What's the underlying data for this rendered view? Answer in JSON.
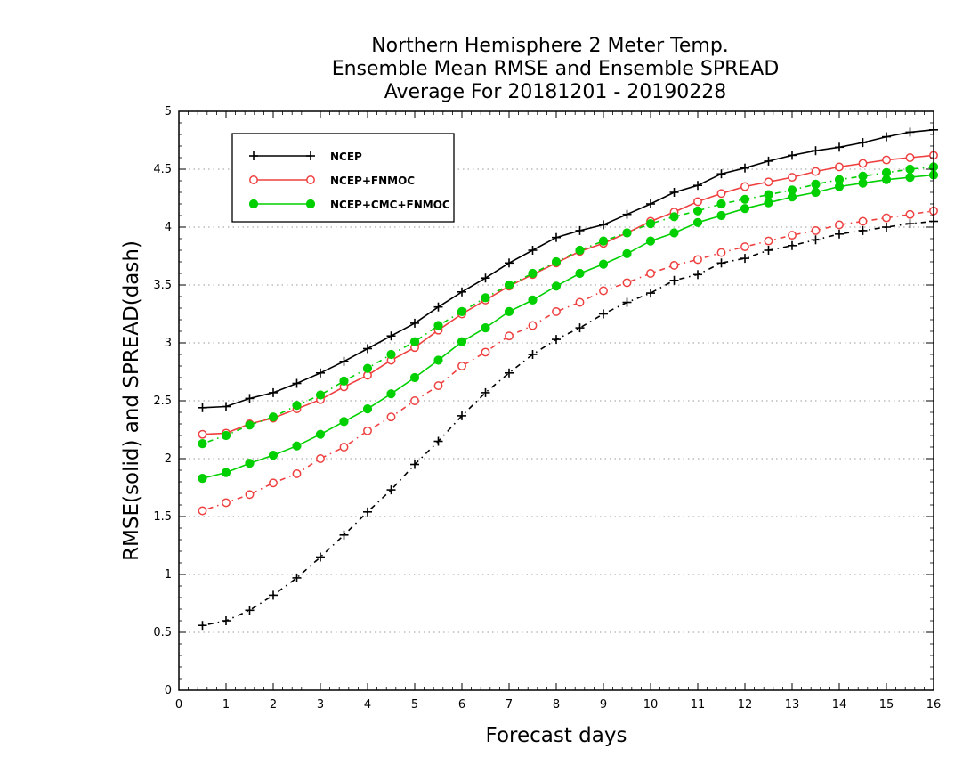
{
  "chart_data": {
    "type": "line",
    "title": [
      "Northern Hemisphere 2 Meter Temp.",
      "Ensemble Mean RMSE and Ensemble SPREAD",
      "Average For 20181201 - 20190228"
    ],
    "xlabel": "Forecast days",
    "ylabel": "RMSE(solid) and SPREAD(dash)",
    "xlim": [
      0,
      16
    ],
    "ylim": [
      0,
      5
    ],
    "x_ticks": [
      "0",
      "1",
      "2",
      "3",
      "4",
      "5",
      "6",
      "7",
      "8",
      "9",
      "10",
      "11",
      "12",
      "13",
      "14",
      "15",
      "16"
    ],
    "y_ticks": [
      "0",
      "0.5",
      "1",
      "1.5",
      "2",
      "2.5",
      "3",
      "3.5",
      "4",
      "4.5",
      "5"
    ],
    "grid": "horizontal dotted",
    "legend_position": "top-left",
    "x": [
      0.5,
      1,
      1.5,
      2,
      2.5,
      3,
      3.5,
      4,
      4.5,
      5,
      5.5,
      6,
      6.5,
      7,
      7.5,
      8,
      8.5,
      9,
      9.5,
      10,
      10.5,
      11,
      11.5,
      12,
      12.5,
      13,
      13.5,
      14,
      14.5,
      15,
      15.5,
      16
    ],
    "series": [
      {
        "name": "NCEP",
        "color": "#000000",
        "marker": "plus",
        "rmse": [
          2.44,
          2.45,
          2.52,
          2.57,
          2.65,
          2.74,
          2.84,
          2.95,
          3.06,
          3.17,
          3.31,
          3.44,
          3.56,
          3.69,
          3.8,
          3.91,
          3.97,
          4.02,
          4.11,
          4.2,
          4.3,
          4.36,
          4.46,
          4.51,
          4.57,
          4.62,
          4.66,
          4.69,
          4.73,
          4.78,
          4.82,
          4.84
        ],
        "spread": [
          0.56,
          0.6,
          0.69,
          0.82,
          0.97,
          1.15,
          1.34,
          1.54,
          1.73,
          1.95,
          2.15,
          2.37,
          2.57,
          2.74,
          2.9,
          3.03,
          3.13,
          3.25,
          3.35,
          3.43,
          3.54,
          3.59,
          3.69,
          3.73,
          3.8,
          3.84,
          3.89,
          3.94,
          3.97,
          4.0,
          4.03,
          4.05
        ]
      },
      {
        "name": "NCEP+FNMOC",
        "color": "#ef4040",
        "marker": "open-circle",
        "rmse": [
          2.21,
          2.22,
          2.3,
          2.35,
          2.43,
          2.51,
          2.62,
          2.72,
          2.85,
          2.96,
          3.11,
          3.25,
          3.37,
          3.49,
          3.59,
          3.69,
          3.79,
          3.86,
          3.95,
          4.05,
          4.13,
          4.22,
          4.29,
          4.35,
          4.39,
          4.43,
          4.48,
          4.52,
          4.55,
          4.58,
          4.6,
          4.62
        ],
        "spread": [
          1.55,
          1.62,
          1.69,
          1.79,
          1.87,
          2.0,
          2.1,
          2.24,
          2.36,
          2.5,
          2.63,
          2.8,
          2.92,
          3.06,
          3.15,
          3.27,
          3.35,
          3.45,
          3.52,
          3.6,
          3.67,
          3.72,
          3.78,
          3.83,
          3.88,
          3.93,
          3.97,
          4.02,
          4.05,
          4.08,
          4.11,
          4.14
        ]
      },
      {
        "name": "NCEP+CMC+FNMOC",
        "color": "#00d000",
        "marker": "filled-circle",
        "rmse": [
          1.83,
          1.88,
          1.96,
          2.03,
          2.11,
          2.21,
          2.32,
          2.43,
          2.56,
          2.7,
          2.85,
          3.01,
          3.13,
          3.27,
          3.37,
          3.49,
          3.6,
          3.68,
          3.77,
          3.88,
          3.95,
          4.04,
          4.1,
          4.16,
          4.21,
          4.26,
          4.3,
          4.35,
          4.38,
          4.41,
          4.43,
          4.45
        ],
        "spread": [
          2.13,
          2.2,
          2.29,
          2.36,
          2.46,
          2.55,
          2.67,
          2.78,
          2.9,
          3.01,
          3.15,
          3.27,
          3.39,
          3.5,
          3.6,
          3.7,
          3.8,
          3.88,
          3.95,
          4.03,
          4.09,
          4.14,
          4.2,
          4.24,
          4.28,
          4.32,
          4.37,
          4.41,
          4.44,
          4.47,
          4.5,
          4.52
        ]
      }
    ]
  }
}
